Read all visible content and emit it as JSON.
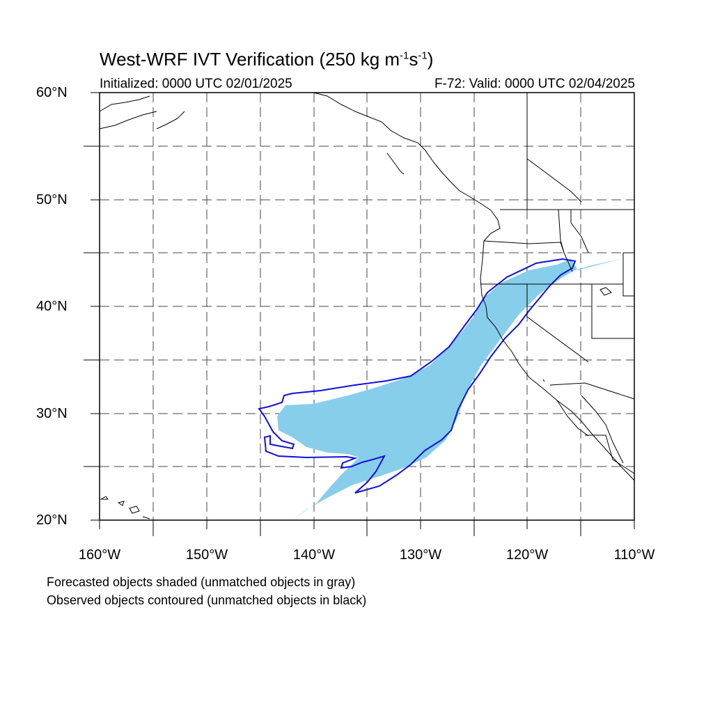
{
  "figure": {
    "title_main": "West-WRF IVT Verification (250 kg m",
    "title_exp1": "-1",
    "title_mid": "s",
    "title_exp2": "-1",
    "title_end": ")",
    "initialized": "Initialized: 0000 UTC 02/01/2025",
    "valid": "F-72: Valid: 0000 UTC 02/04/2025",
    "note_forecast": "Forecasted objects shaded (unmatched objects in gray)",
    "note_observed": "Observed objects contoured (unmatched objects in black)"
  },
  "axes": {
    "y_ticks": [
      "60°N",
      "50°N",
      "40°N",
      "30°N",
      "20°N"
    ],
    "x_ticks": [
      "160°W",
      "150°W",
      "140°W",
      "130°W",
      "120°W",
      "110°W"
    ],
    "lat_range": [
      20,
      60
    ],
    "lon_range": [
      -160,
      -110
    ],
    "grid": "dashed every 5 degrees"
  },
  "colors": {
    "forecast_fill": "#87ceeb",
    "observed_contour": "#1010dd",
    "coastline": "#000000",
    "grid": "#444444"
  }
}
